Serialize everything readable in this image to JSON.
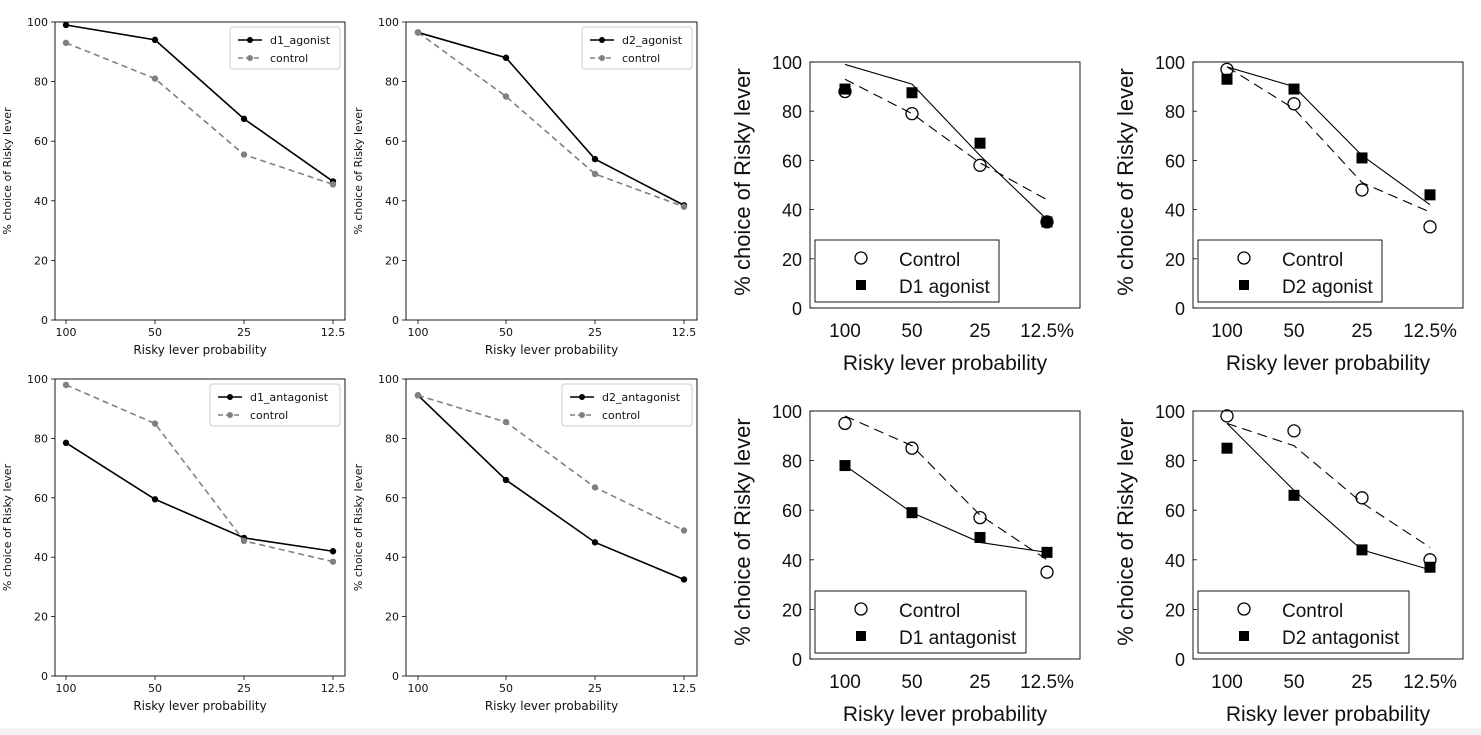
{
  "chart_data": [
    {
      "type": "line",
      "style": "matplotlib",
      "categories": [
        "100",
        "50",
        "25",
        "12.5"
      ],
      "xlabel": "Risky lever probability",
      "ylabel": "% choice of Risky lever",
      "ylim": [
        0,
        100
      ],
      "yticks": [
        "0",
        "20",
        "40",
        "60",
        "80",
        "100"
      ],
      "legend_position": "top-right",
      "series": [
        {
          "name": "d1_agonist",
          "values": [
            99,
            94,
            67.5,
            46.5
          ],
          "color": "#000000",
          "dashed": false
        },
        {
          "name": "control",
          "values": [
            93,
            81,
            55.5,
            45.5
          ],
          "color": "#808080",
          "dashed": true
        }
      ]
    },
    {
      "type": "line",
      "style": "matplotlib",
      "categories": [
        "100",
        "50",
        "25",
        "12.5"
      ],
      "xlabel": "Risky lever probability",
      "ylabel": "% choice of Risky lever",
      "ylim": [
        0,
        100
      ],
      "yticks": [
        "0",
        "20",
        "40",
        "60",
        "80",
        "100"
      ],
      "legend_position": "top-right",
      "series": [
        {
          "name": "d2_agonist",
          "values": [
            96.5,
            88,
            54,
            38.5
          ],
          "color": "#000000",
          "dashed": false
        },
        {
          "name": "control",
          "values": [
            96.5,
            75,
            49,
            38
          ],
          "color": "#808080",
          "dashed": true
        }
      ]
    },
    {
      "type": "line",
      "style": "matplotlib",
      "categories": [
        "100",
        "50",
        "25",
        "12.5"
      ],
      "xlabel": "Risky lever probability",
      "ylabel": "% choice of Risky lever",
      "ylim": [
        0,
        100
      ],
      "yticks": [
        "0",
        "20",
        "40",
        "60",
        "80",
        "100"
      ],
      "legend_position": "top-right",
      "series": [
        {
          "name": "d1_antagonist",
          "values": [
            78.5,
            59.5,
            46.5,
            42
          ],
          "color": "#000000",
          "dashed": false
        },
        {
          "name": "control",
          "values": [
            98,
            85,
            45.5,
            38.5
          ],
          "color": "#808080",
          "dashed": true
        }
      ]
    },
    {
      "type": "line",
      "style": "matplotlib",
      "categories": [
        "100",
        "50",
        "25",
        "12.5"
      ],
      "xlabel": "Risky lever probability",
      "ylabel": "% choice of Risky lever",
      "ylim": [
        0,
        100
      ],
      "yticks": [
        "0",
        "20",
        "40",
        "60",
        "80",
        "100"
      ],
      "legend_position": "top-right",
      "series": [
        {
          "name": "d2_antagonist",
          "values": [
            94.5,
            66,
            45,
            32.5
          ],
          "color": "#000000",
          "dashed": false
        },
        {
          "name": "control",
          "values": [
            94.5,
            85.5,
            63.5,
            49
          ],
          "color": "#808080",
          "dashed": true
        }
      ]
    },
    {
      "type": "line",
      "style": "matlab",
      "categories": [
        "100",
        "50",
        "25",
        "12.5%"
      ],
      "xlabel": "Risky lever probability",
      "ylabel": "% choice of Risky lever",
      "ylim": [
        0,
        100
      ],
      "yticks": [
        "0",
        "20",
        "40",
        "60",
        "80",
        "100"
      ],
      "legend_position": "bottom-left",
      "series": [
        {
          "name": "Control",
          "marker": "open-circle",
          "values": [
            88,
            79,
            58,
            35
          ]
        },
        {
          "name": "D1 agonist",
          "marker": "filled-square",
          "values": [
            89,
            87.5,
            67,
            35
          ]
        }
      ],
      "fit_lines": [
        {
          "style": "solid",
          "values": [
            99,
            91,
            62,
            36
          ]
        },
        {
          "style": "dashed",
          "values": [
            93,
            79,
            59,
            44
          ]
        }
      ]
    },
    {
      "type": "line",
      "style": "matlab",
      "categories": [
        "100",
        "50",
        "25",
        "12.5%"
      ],
      "xlabel": "Risky lever probability",
      "ylabel": "% choice of Risky lever",
      "ylim": [
        0,
        100
      ],
      "yticks": [
        "0",
        "20",
        "40",
        "60",
        "80",
        "100"
      ],
      "legend_position": "bottom-left",
      "series": [
        {
          "name": "Control",
          "marker": "open-circle",
          "values": [
            97,
            83,
            48,
            33
          ]
        },
        {
          "name": "D2 agonist",
          "marker": "filled-square",
          "values": [
            93,
            89,
            61,
            46
          ]
        }
      ],
      "fit_lines": [
        {
          "style": "solid",
          "values": [
            98,
            90,
            62,
            42
          ]
        },
        {
          "style": "dashed",
          "values": [
            98,
            81,
            51,
            39
          ]
        }
      ]
    },
    {
      "type": "line",
      "style": "matlab",
      "categories": [
        "100",
        "50",
        "25",
        "12.5%"
      ],
      "xlabel": "Risky lever probability",
      "ylabel": "% choice of Risky lever",
      "ylim": [
        0,
        100
      ],
      "yticks": [
        "0",
        "20",
        "40",
        "60",
        "80",
        "100"
      ],
      "legend_position": "bottom-left",
      "series": [
        {
          "name": "Control",
          "marker": "open-circle",
          "values": [
            95,
            85,
            57,
            35
          ]
        },
        {
          "name": "D1 antagonist",
          "marker": "filled-square",
          "values": [
            78,
            59,
            49,
            43
          ]
        }
      ],
      "fit_lines": [
        {
          "style": "dashed",
          "values": [
            98,
            86,
            58,
            40
          ]
        },
        {
          "style": "solid",
          "values": [
            78,
            59,
            47,
            43
          ]
        }
      ]
    },
    {
      "type": "line",
      "style": "matlab",
      "categories": [
        "100",
        "50",
        "25",
        "12.5%"
      ],
      "xlabel": "Risky lever probability",
      "ylabel": "% choice of Risky lever",
      "ylim": [
        0,
        100
      ],
      "yticks": [
        "0",
        "20",
        "40",
        "60",
        "80",
        "100"
      ],
      "legend_position": "bottom-left",
      "series": [
        {
          "name": "Control",
          "marker": "open-circle",
          "values": [
            98,
            92,
            65,
            40
          ]
        },
        {
          "name": "D2 antagonist",
          "marker": "filled-square",
          "values": [
            85,
            66,
            44,
            37
          ]
        }
      ],
      "fit_lines": [
        {
          "style": "dashed",
          "values": [
            95,
            86,
            63,
            45
          ]
        },
        {
          "style": "solid",
          "values": [
            95,
            68,
            44,
            36
          ]
        }
      ]
    }
  ]
}
